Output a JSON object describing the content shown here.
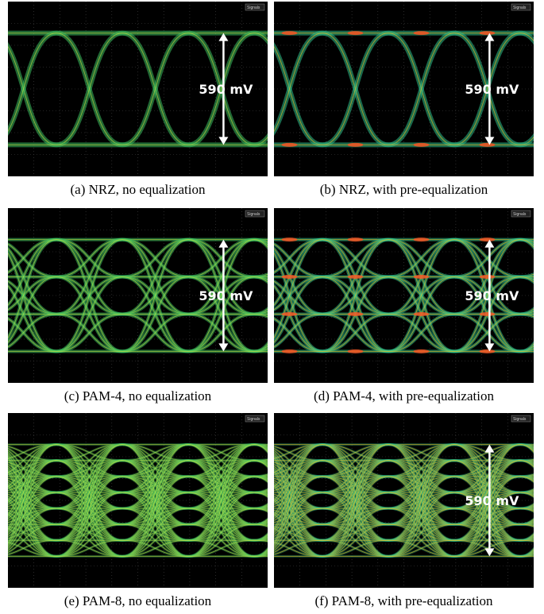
{
  "panels": [
    {
      "caption": "(a)  NRZ, no equalization",
      "annotation": "590 mV",
      "menu": "Signals"
    },
    {
      "caption": "(b) NRZ, with pre-equalization",
      "annotation": "590 mV",
      "menu": "Signals"
    },
    {
      "caption": "(c) PAM-4, no equalization",
      "annotation": "590 mV",
      "menu": "Signals"
    },
    {
      "caption": "(d) PAM-4, with pre-equalization",
      "annotation": "590 mV",
      "menu": "Signals"
    },
    {
      "caption": "(e) PAM-8, no equalization",
      "menu": "Signals"
    },
    {
      "caption": "(f) PAM-8, with pre-equalization",
      "annotation": "590 mV",
      "menu": "Signals"
    }
  ]
}
